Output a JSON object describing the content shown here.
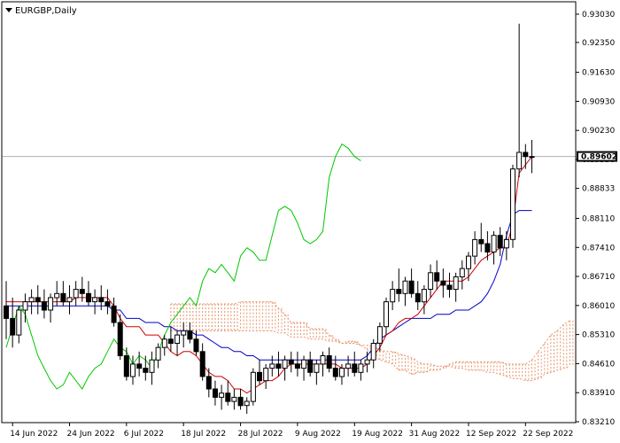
{
  "header": {
    "symbol_label": "EURGBP,Daily"
  },
  "colors": {
    "background": "#ffffff",
    "up_candle": "#ffffff",
    "down_candle": "#000000",
    "candle_outline": "#000000",
    "tenkan": "#d00000",
    "kijun": "#0000c8",
    "chikou": "#00c800",
    "cloud": "#e6946a",
    "bid_line": "#b0b0b0"
  },
  "chart_data": {
    "type": "candlestick",
    "title": "EURGBP,Daily",
    "ylim": [
      0.8321,
      0.9303
    ],
    "y_ticks": [
      "0.93030",
      "0.92350",
      "0.91630",
      "0.90930",
      "0.90230",
      "0.89530",
      "0.88833",
      "0.88110",
      "0.87410",
      "0.86710",
      "0.86010",
      "0.85310",
      "0.84610",
      "0.83910",
      "0.83210"
    ],
    "current_price": "0.89602",
    "x_ticks": [
      "14 Jun 2022",
      "24 Jun 2022",
      "6 Jul 2022",
      "18 Jul 2022",
      "28 Jul 2022",
      "9 Aug 2022",
      "19 Aug 2022",
      "31 Aug 2022",
      "12 Sep 2022",
      "22 Sep 2022"
    ],
    "x_tick_index": [
      1,
      10,
      19,
      28,
      37,
      46,
      55,
      64,
      73,
      82
    ],
    "candles": [
      [
        0.86,
        0.866,
        0.852,
        0.857
      ],
      [
        0.857,
        0.862,
        0.85,
        0.853
      ],
      [
        0.853,
        0.86,
        0.851,
        0.859
      ],
      [
        0.859,
        0.863,
        0.856,
        0.861
      ],
      [
        0.861,
        0.864,
        0.858,
        0.862
      ],
      [
        0.862,
        0.865,
        0.858,
        0.861
      ],
      [
        0.861,
        0.864,
        0.857,
        0.859
      ],
      [
        0.859,
        0.863,
        0.856,
        0.862
      ],
      [
        0.862,
        0.866,
        0.86,
        0.863
      ],
      [
        0.863,
        0.866,
        0.86,
        0.861
      ],
      [
        0.861,
        0.865,
        0.858,
        0.862
      ],
      [
        0.862,
        0.866,
        0.86,
        0.864
      ],
      [
        0.864,
        0.867,
        0.861,
        0.863
      ],
      [
        0.863,
        0.866,
        0.86,
        0.861
      ],
      [
        0.861,
        0.864,
        0.858,
        0.862
      ],
      [
        0.862,
        0.865,
        0.859,
        0.861
      ],
      [
        0.861,
        0.864,
        0.858,
        0.86
      ],
      [
        0.86,
        0.862,
        0.855,
        0.856
      ],
      [
        0.856,
        0.858,
        0.847,
        0.848
      ],
      [
        0.848,
        0.85,
        0.842,
        0.843
      ],
      [
        0.843,
        0.848,
        0.841,
        0.846
      ],
      [
        0.846,
        0.849,
        0.843,
        0.845
      ],
      [
        0.845,
        0.848,
        0.842,
        0.844
      ],
      [
        0.844,
        0.849,
        0.841,
        0.847
      ],
      [
        0.847,
        0.851,
        0.845,
        0.85
      ],
      [
        0.85,
        0.853,
        0.848,
        0.852
      ],
      [
        0.852,
        0.855,
        0.849,
        0.851
      ],
      [
        0.851,
        0.854,
        0.848,
        0.853
      ],
      [
        0.853,
        0.856,
        0.85,
        0.854
      ],
      [
        0.854,
        0.856,
        0.851,
        0.852
      ],
      [
        0.852,
        0.854,
        0.848,
        0.849
      ],
      [
        0.849,
        0.851,
        0.842,
        0.843
      ],
      [
        0.843,
        0.845,
        0.838,
        0.84
      ],
      [
        0.84,
        0.842,
        0.836,
        0.838
      ],
      [
        0.838,
        0.841,
        0.835,
        0.839
      ],
      [
        0.839,
        0.842,
        0.836,
        0.837
      ],
      [
        0.837,
        0.84,
        0.835,
        0.838
      ],
      [
        0.838,
        0.84,
        0.835,
        0.836
      ],
      [
        0.836,
        0.838,
        0.834,
        0.837
      ],
      [
        0.837,
        0.845,
        0.836,
        0.844
      ],
      [
        0.844,
        0.847,
        0.841,
        0.842
      ],
      [
        0.842,
        0.846,
        0.84,
        0.845
      ],
      [
        0.845,
        0.848,
        0.843,
        0.846
      ],
      [
        0.846,
        0.849,
        0.843,
        0.845
      ],
      [
        0.845,
        0.848,
        0.842,
        0.847
      ],
      [
        0.847,
        0.849,
        0.844,
        0.846
      ],
      [
        0.846,
        0.849,
        0.843,
        0.845
      ],
      [
        0.845,
        0.848,
        0.842,
        0.847
      ],
      [
        0.847,
        0.849,
        0.843,
        0.844
      ],
      [
        0.844,
        0.847,
        0.841,
        0.846
      ],
      [
        0.846,
        0.849,
        0.843,
        0.848
      ],
      [
        0.848,
        0.85,
        0.844,
        0.845
      ],
      [
        0.845,
        0.848,
        0.842,
        0.843
      ],
      [
        0.843,
        0.846,
        0.841,
        0.845
      ],
      [
        0.845,
        0.848,
        0.843,
        0.846
      ],
      [
        0.846,
        0.849,
        0.843,
        0.844
      ],
      [
        0.844,
        0.847,
        0.842,
        0.846
      ],
      [
        0.846,
        0.849,
        0.844,
        0.847
      ],
      [
        0.847,
        0.852,
        0.845,
        0.851
      ],
      [
        0.851,
        0.856,
        0.849,
        0.855
      ],
      [
        0.855,
        0.862,
        0.853,
        0.861
      ],
      [
        0.861,
        0.866,
        0.859,
        0.864
      ],
      [
        0.864,
        0.869,
        0.861,
        0.863
      ],
      [
        0.863,
        0.867,
        0.86,
        0.866
      ],
      [
        0.866,
        0.869,
        0.862,
        0.863
      ],
      [
        0.863,
        0.866,
        0.859,
        0.861
      ],
      [
        0.861,
        0.865,
        0.858,
        0.864
      ],
      [
        0.864,
        0.87,
        0.862,
        0.868
      ],
      [
        0.868,
        0.871,
        0.864,
        0.866
      ],
      [
        0.866,
        0.869,
        0.862,
        0.865
      ],
      [
        0.865,
        0.868,
        0.862,
        0.864
      ],
      [
        0.864,
        0.868,
        0.861,
        0.867
      ],
      [
        0.867,
        0.871,
        0.864,
        0.869
      ],
      [
        0.869,
        0.873,
        0.866,
        0.872
      ],
      [
        0.872,
        0.878,
        0.87,
        0.876
      ],
      [
        0.876,
        0.88,
        0.873,
        0.875
      ],
      [
        0.875,
        0.878,
        0.871,
        0.873
      ],
      [
        0.873,
        0.878,
        0.87,
        0.877
      ],
      [
        0.877,
        0.879,
        0.872,
        0.874
      ],
      [
        0.874,
        0.878,
        0.871,
        0.876
      ],
      [
        0.876,
        0.894,
        0.874,
        0.893
      ],
      [
        0.893,
        0.928,
        0.891,
        0.897
      ],
      [
        0.897,
        0.899,
        0.893,
        0.896
      ],
      [
        0.896,
        0.9,
        0.892,
        0.896
      ]
    ],
    "tenkan": [
      0.861,
      0.861,
      0.861,
      0.861,
      0.861,
      0.861,
      0.861,
      0.861,
      0.861,
      0.861,
      0.861,
      0.862,
      0.862,
      0.862,
      0.862,
      0.862,
      0.862,
      0.86,
      0.857,
      0.855,
      0.855,
      0.855,
      0.853,
      0.853,
      0.853,
      0.851,
      0.849,
      0.848,
      0.849,
      0.849,
      0.848,
      0.846,
      0.844,
      0.843,
      0.843,
      0.842,
      0.84,
      0.84,
      0.839,
      0.84,
      0.841,
      0.842,
      0.842,
      0.843,
      0.845,
      0.846,
      0.846,
      0.846,
      0.846,
      0.846,
      0.846,
      0.846,
      0.846,
      0.845,
      0.845,
      0.845,
      0.845,
      0.846,
      0.848,
      0.85,
      0.853,
      0.854,
      0.856,
      0.857,
      0.857,
      0.858,
      0.86,
      0.862,
      0.864,
      0.866,
      0.866,
      0.866,
      0.866,
      0.867,
      0.869,
      0.871,
      0.872,
      0.873,
      0.874,
      0.874,
      0.88,
      0.892,
      0.894,
      0.896
    ],
    "kijun": [
      0.86,
      0.86,
      0.86,
      0.86,
      0.86,
      0.86,
      0.86,
      0.86,
      0.86,
      0.86,
      0.86,
      0.86,
      0.86,
      0.86,
      0.86,
      0.86,
      0.86,
      0.859,
      0.859,
      0.857,
      0.857,
      0.857,
      0.856,
      0.856,
      0.856,
      0.855,
      0.855,
      0.854,
      0.854,
      0.854,
      0.853,
      0.853,
      0.852,
      0.851,
      0.85,
      0.85,
      0.849,
      0.849,
      0.848,
      0.848,
      0.847,
      0.847,
      0.847,
      0.847,
      0.847,
      0.847,
      0.847,
      0.847,
      0.847,
      0.847,
      0.847,
      0.847,
      0.847,
      0.847,
      0.847,
      0.847,
      0.847,
      0.848,
      0.85,
      0.852,
      0.853,
      0.854,
      0.855,
      0.856,
      0.857,
      0.857,
      0.857,
      0.857,
      0.858,
      0.858,
      0.858,
      0.859,
      0.859,
      0.859,
      0.86,
      0.861,
      0.863,
      0.866,
      0.87,
      0.877,
      0.882,
      0.883,
      0.883,
      0.883
    ],
    "chikou": [
      0.85,
      0.855,
      0.86,
      0.858,
      0.853,
      0.848,
      0.845,
      0.842,
      0.84,
      0.841,
      0.844,
      0.842,
      0.84,
      0.843,
      0.845,
      0.846,
      0.849,
      0.852,
      0.85,
      0.849,
      0.846,
      0.848,
      0.847,
      0.845,
      0.849,
      0.853,
      0.856,
      0.858,
      0.86,
      0.862,
      0.86,
      0.866,
      0.869,
      0.868,
      0.87,
      0.868,
      0.866,
      0.872,
      0.874,
      0.873,
      0.871,
      0.871,
      0.877,
      0.883,
      0.884,
      0.883,
      0.88,
      0.876,
      0.875,
      0.876,
      0.878,
      0.891,
      0.896,
      0.899,
      0.898,
      0.896,
      0.895
    ]
  }
}
